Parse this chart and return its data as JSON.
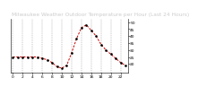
{
  "title": "Milwaukee Weather Outdoor Temperature per Hour (Last 24 Hours)",
  "x_values": [
    0,
    1,
    2,
    3,
    4,
    5,
    6,
    7,
    8,
    9,
    10,
    11,
    12,
    13,
    14,
    15,
    16,
    17,
    18,
    19,
    20,
    21,
    22,
    23
  ],
  "y_values": [
    25,
    25,
    25,
    25,
    25,
    25,
    24,
    23,
    21,
    18,
    17,
    19,
    28,
    38,
    46,
    48,
    44,
    40,
    34,
    30,
    27,
    24,
    21,
    19
  ],
  "line_color": "#cc0000",
  "marker_color": "#000000",
  "bg_color": "#ffffff",
  "plot_bg_color": "#ffffff",
  "grid_color": "#888888",
  "title_bg_color": "#222222",
  "title_text_color": "#cccccc",
  "ylim": [
    14,
    52
  ],
  "xlim": [
    -0.5,
    23.5
  ],
  "ytick_values": [
    20,
    25,
    30,
    35,
    40,
    45,
    50
  ],
  "xtick_values": [
    0,
    2,
    4,
    6,
    8,
    10,
    12,
    14,
    16,
    18,
    20,
    22
  ],
  "title_fontsize": 4.2,
  "tick_fontsize": 3.2
}
